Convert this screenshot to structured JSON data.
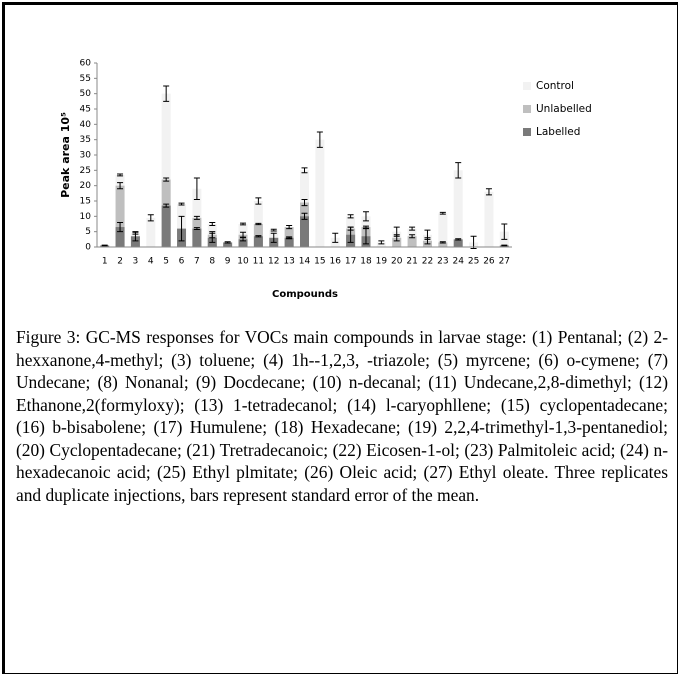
{
  "chart_data": {
    "type": "bar",
    "ylabel": "Peak area 10⁵",
    "xlabel": "Compounds",
    "categories": [
      "1",
      "2",
      "3",
      "4",
      "5",
      "6",
      "7",
      "8",
      "9",
      "10",
      "11",
      "12",
      "13",
      "14",
      "15",
      "16",
      "17",
      "18",
      "19",
      "20",
      "21",
      "22",
      "23",
      "24",
      "25",
      "26",
      "27"
    ],
    "series": [
      {
        "name": "Control",
        "color": "#f2f2f2",
        "values": [
          null,
          23.5,
          4.5,
          9.5,
          50,
          14,
          19,
          7.5,
          null,
          7.5,
          15,
          5.5,
          3,
          25,
          35,
          3,
          10,
          10,
          1.5,
          5,
          6,
          4,
          11,
          25,
          1.5,
          18,
          5
        ],
        "errors": [
          null,
          0.3,
          0.3,
          1,
          2.5,
          0.3,
          3.5,
          0.5,
          null,
          0.3,
          1,
          0.3,
          0.3,
          0.8,
          2.5,
          1.5,
          0.5,
          1.5,
          0.5,
          1.5,
          0.5,
          1.5,
          0.3,
          2.5,
          2,
          1,
          2.5
        ]
      },
      {
        "name": "Unlabelled",
        "color": "#bfbfbf",
        "values": [
          null,
          20,
          null,
          null,
          22,
          null,
          9.5,
          4,
          null,
          4,
          7.5,
          null,
          6.5,
          14.5,
          null,
          null,
          6,
          6.5,
          null,
          3,
          3.5,
          2,
          1.5,
          null,
          null,
          null,
          null
        ],
        "errors": [
          null,
          1,
          null,
          null,
          0.5,
          null,
          0.5,
          1,
          null,
          0.8,
          0.2,
          null,
          0.5,
          1,
          null,
          null,
          0.5,
          0.3,
          null,
          1,
          0.5,
          1,
          0.2,
          null,
          null,
          null,
          null
        ]
      },
      {
        "name": "Labelled",
        "color": "#7a7a7a",
        "values": [
          0.5,
          6.5,
          3.5,
          null,
          13.5,
          6,
          6,
          3,
          1.5,
          2.5,
          3.5,
          3,
          3,
          10,
          null,
          null,
          4,
          3.5,
          null,
          null,
          null,
          null,
          null,
          2.5,
          null,
          null,
          0.5
        ],
        "errors": [
          0.1,
          1.5,
          1.5,
          null,
          0.5,
          4,
          0.3,
          1.5,
          0.2,
          0.5,
          0.2,
          1.5,
          0.2,
          1,
          null,
          null,
          2.5,
          2.5,
          null,
          null,
          null,
          null,
          null,
          0.2,
          null,
          null,
          0.1
        ]
      }
    ],
    "ylim": [
      0,
      60
    ],
    "yticks": [
      0,
      5,
      10,
      15,
      20,
      25,
      30,
      35,
      40,
      45,
      50,
      55,
      60
    ],
    "caption": "Figure 3: GC-MS responses for VOCs main compounds in larvae stage: (1) Pentanal; (2) 2-hexxanone,4-methyl; (3) toluene; (4) 1h--1,2,3, -triazole; (5) myrcene; (6) o-cymene; (7) Undecane; (8) Nonanal; (9) Docdecane; (10) n-decanal; (11) Undecane,2,8-dimethyl; (12) Ethanone,2(formyloxy); (13) 1-tetradecanol; (14) l-caryophllene; (15) cyclopentadecane; (16) b-bisabolene; (17) Humulene; (18) Hexadecane; (19) 2,2,4-trimethyl-1,3-pentanediol; (20) Cyclopentadecane; (21) Tretradecanoic; (22) Eicosen-1-ol; (23) Palmitoleic acid; (24) n-hexadecanoic acid; (25) Ethyl plmitate; (26) Oleic acid; (27) Ethyl oleate. Three replicates and duplicate injections, bars represent standard error of the mean."
  }
}
